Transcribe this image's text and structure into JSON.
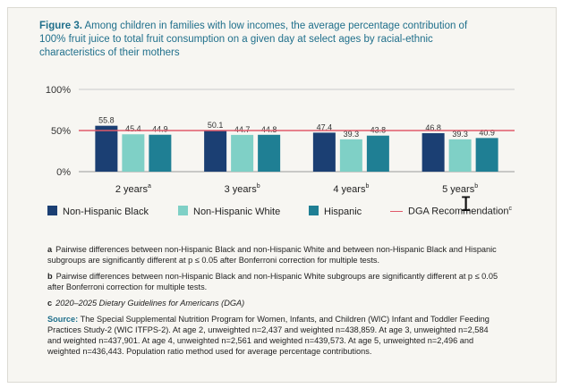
{
  "figure": {
    "label": "Figure 3.",
    "title": "Among children in families with low incomes, the average percentage contribution of 100% fruit juice to total fruit consumption on a given day at select ages by racial-ethnic characteristics of their mothers"
  },
  "chart_data": {
    "type": "bar",
    "categories": [
      "2 years",
      "3 years",
      "4 years",
      "5 years"
    ],
    "category_superscripts": [
      "a",
      "b",
      "b",
      "b"
    ],
    "series": [
      {
        "name": "Non-Hispanic Black",
        "color": "#1b3f73",
        "values": [
          55.8,
          50.1,
          47.4,
          46.8
        ],
        "labels": [
          "55.8",
          "50.1",
          "47.4",
          "46.8"
        ]
      },
      {
        "name": "Non-Hispanic White",
        "color": "#7fd0c6",
        "values": [
          45.4,
          44.7,
          39.3,
          39.3
        ],
        "labels": [
          "45.4",
          "44.7",
          "39.3",
          "39.3"
        ]
      },
      {
        "name": "Hispanic",
        "color": "#1f7f94",
        "values": [
          44.9,
          44.8,
          43.8,
          40.9
        ],
        "labels": [
          "44.9",
          "44.8",
          "43.8",
          "40.9"
        ]
      }
    ],
    "reference_line": {
      "name": "DGA Recommendation",
      "superscript": "c",
      "value": 50,
      "color": "#e05a6a"
    },
    "yticks": [
      "100%",
      "50%",
      "0%"
    ],
    "ylim": [
      0,
      100
    ],
    "grid": "horizontal",
    "legend": "bottom"
  },
  "notes": [
    {
      "key": "a",
      "text": "Pairwise differences between non-Hispanic Black and non-Hispanic White and between non-Hispanic Black and Hispanic subgroups are significantly different at p ≤ 0.05 after Bonferroni correction for multiple tests."
    },
    {
      "key": "b",
      "text": "Pairwise differences between non-Hispanic Black and non-Hispanic White subgroups are significantly different at p ≤ 0.05 after Bonferroni correction for multiple tests."
    },
    {
      "key": "c",
      "text": "2020–2025 Dietary Guidelines for Americans (DGA)"
    }
  ],
  "source": {
    "label": "Source:",
    "text": "The Special Supplemental Nutrition Program for Women, Infants, and Children (WIC) Infant and Toddler Feeding Practices Study-2 (WIC ITFPS-2). At age 2, unweighted n=2,437 and weighted n=438,859. At age 3, unweighted n=2,584 and weighted n=437,901. At age 4, unweighted n=2,561 and weighted n=439,573. At age 5, unweighted n=2,496 and weighted n=436,443. Population ratio method used for average percentage contributions."
  }
}
